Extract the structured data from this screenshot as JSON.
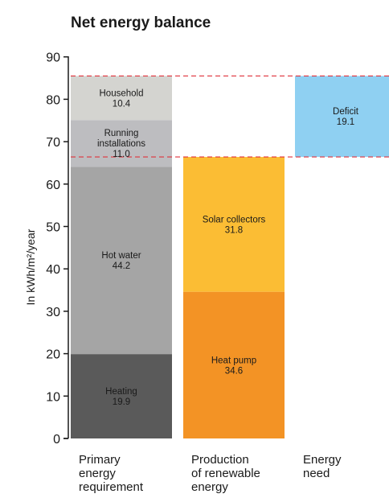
{
  "chart_data": {
    "type": "bar",
    "stacked": true,
    "title": "Net energy balance",
    "ylabel": "In kWh/m²/year",
    "ylim": [
      0,
      90
    ],
    "yticks": [
      0,
      10,
      20,
      30,
      40,
      50,
      60,
      70,
      80,
      90
    ],
    "grid": false,
    "columns": [
      {
        "label_lines": [
          "Primary",
          "energy",
          "requirement"
        ],
        "segments": [
          {
            "lines": [
              "Heating"
            ],
            "value": 19.9,
            "value_text": "19.9",
            "color": "#5a5a5a"
          },
          {
            "lines": [
              "Hot water"
            ],
            "value": 44.2,
            "value_text": "44.2",
            "color": "#a5a5a5"
          },
          {
            "lines": [
              "Running",
              "installations"
            ],
            "value": 11.0,
            "value_text": "11.0",
            "color": "#bdbdc0"
          },
          {
            "lines": [
              "Household"
            ],
            "value": 10.4,
            "value_text": "10.4",
            "color": "#d4d4d0"
          }
        ]
      },
      {
        "label_lines": [
          "Production",
          "of renewable",
          "energy"
        ],
        "segments": [
          {
            "lines": [
              "Heat pump"
            ],
            "value": 34.6,
            "value_text": "34.6",
            "color": "#f39325"
          },
          {
            "lines": [
              "Solar collectors"
            ],
            "value": 31.8,
            "value_text": "31.8",
            "color": "#fbbd34"
          }
        ]
      },
      {
        "label_lines": [
          "Energy",
          "need"
        ],
        "segments": [
          {
            "lines": [
              "Deficit"
            ],
            "value": 19.1,
            "value_text": "19.1",
            "color": "#8fd0f2",
            "base": 66.4
          }
        ]
      }
    ],
    "reference_lines": [
      {
        "value": 85.5,
        "color": "#e0323c",
        "style": "dashed"
      },
      {
        "value": 66.4,
        "color": "#e0323c",
        "style": "dashed"
      }
    ]
  }
}
